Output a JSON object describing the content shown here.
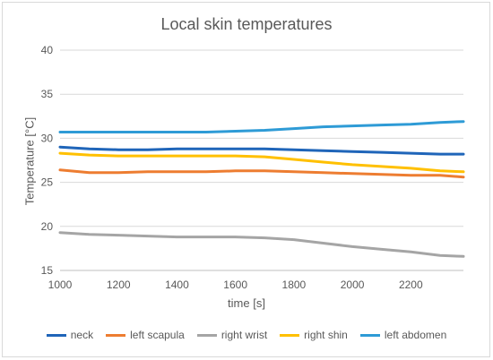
{
  "chart_data": {
    "type": "line",
    "title": "Local skin temperatures",
    "xlabel": "time [s]",
    "ylabel": "Temperature [°C]",
    "xlim": [
      1000,
      2380
    ],
    "ylim": [
      15,
      40
    ],
    "xticks": [
      1000,
      1200,
      1400,
      1600,
      1800,
      2000,
      2200
    ],
    "yticks": [
      15,
      20,
      25,
      30,
      35,
      40
    ],
    "grid": "horizontal",
    "legend_position": "bottom",
    "x": [
      1000,
      1100,
      1200,
      1300,
      1400,
      1500,
      1600,
      1700,
      1800,
      1900,
      2000,
      2100,
      2200,
      2300,
      2380
    ],
    "series": [
      {
        "name": "neck",
        "color": "#1f65b9",
        "values": [
          29.0,
          28.8,
          28.7,
          28.7,
          28.8,
          28.8,
          28.8,
          28.8,
          28.7,
          28.6,
          28.5,
          28.4,
          28.3,
          28.2,
          28.2
        ]
      },
      {
        "name": "left scapula",
        "color": "#ed7d31",
        "values": [
          26.4,
          26.1,
          26.1,
          26.2,
          26.2,
          26.2,
          26.3,
          26.3,
          26.2,
          26.1,
          26.0,
          25.9,
          25.8,
          25.8,
          25.6
        ]
      },
      {
        "name": "right wrist",
        "color": "#a5a5a5",
        "values": [
          19.3,
          19.1,
          19.0,
          18.9,
          18.8,
          18.8,
          18.8,
          18.7,
          18.5,
          18.1,
          17.7,
          17.4,
          17.1,
          16.7,
          16.6
        ]
      },
      {
        "name": "right shin",
        "color": "#ffc000",
        "values": [
          28.3,
          28.1,
          28.0,
          28.0,
          28.0,
          28.0,
          28.0,
          27.9,
          27.6,
          27.3,
          27.0,
          26.8,
          26.6,
          26.3,
          26.2
        ]
      },
      {
        "name": "left abdomen",
        "color": "#2e9bd6",
        "values": [
          30.7,
          30.7,
          30.7,
          30.7,
          30.7,
          30.7,
          30.8,
          30.9,
          31.1,
          31.3,
          31.4,
          31.5,
          31.6,
          31.8,
          31.9
        ]
      }
    ]
  }
}
